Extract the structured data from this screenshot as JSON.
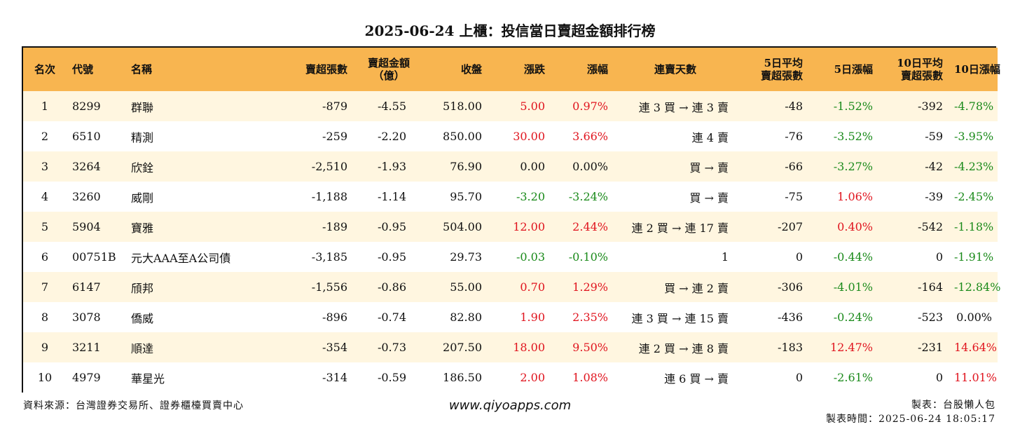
{
  "title": "2025-06-24 上櫃：投信當日賣超金額排行榜",
  "headers": {
    "rank": "名次",
    "code": "代號",
    "name": "名稱",
    "sell_shares": "賣超張數",
    "sell_amount_1": "賣超金額",
    "sell_amount_2": "（億）",
    "close": "收盤",
    "change": "漲跌",
    "change_pct": "漲幅",
    "streak": "連賣天數",
    "avg5_1": "5日平均",
    "avg5_2": "賣超張數",
    "chg5": "5日漲幅",
    "avg10_1": "10日平均",
    "avg10_2": "賣超張數",
    "chg10": "10日漲幅"
  },
  "rows": [
    {
      "rank": "1",
      "code": "8299",
      "name": "群聯",
      "sell_shares": "-879",
      "sell_amount": "-4.55",
      "close": "518.00",
      "change": "5.00",
      "change_pct": "0.97%",
      "streak": "連 3 買 → 連 3 賣",
      "avg5": "-48",
      "chg5": "-1.52%",
      "avg10": "-392",
      "chg10": "-4.78%"
    },
    {
      "rank": "2",
      "code": "6510",
      "name": "精測",
      "sell_shares": "-259",
      "sell_amount": "-2.20",
      "close": "850.00",
      "change": "30.00",
      "change_pct": "3.66%",
      "streak": "連 4 賣",
      "avg5": "-76",
      "chg5": "-3.52%",
      "avg10": "-59",
      "chg10": "-3.95%"
    },
    {
      "rank": "3",
      "code": "3264",
      "name": "欣銓",
      "sell_shares": "-2,510",
      "sell_amount": "-1.93",
      "close": "76.90",
      "change": "0.00",
      "change_pct": "0.00%",
      "streak": "買 → 賣",
      "avg5": "-66",
      "chg5": "-3.27%",
      "avg10": "-42",
      "chg10": "-4.23%"
    },
    {
      "rank": "4",
      "code": "3260",
      "name": "威剛",
      "sell_shares": "-1,188",
      "sell_amount": "-1.14",
      "close": "95.70",
      "change": "-3.20",
      "change_pct": "-3.24%",
      "streak": "買 → 賣",
      "avg5": "-75",
      "chg5": "1.06%",
      "avg10": "-39",
      "chg10": "-2.45%"
    },
    {
      "rank": "5",
      "code": "5904",
      "name": "寶雅",
      "sell_shares": "-189",
      "sell_amount": "-0.95",
      "close": "504.00",
      "change": "12.00",
      "change_pct": "2.44%",
      "streak": "連 2 買 → 連 17 賣",
      "avg5": "-207",
      "chg5": "0.40%",
      "avg10": "-542",
      "chg10": "-1.18%"
    },
    {
      "rank": "6",
      "code": "00751B",
      "name": "元大AAA至A公司債",
      "sell_shares": "-3,185",
      "sell_amount": "-0.95",
      "close": "29.73",
      "change": "-0.03",
      "change_pct": "-0.10%",
      "streak": "1",
      "avg5": "0",
      "chg5": "-0.44%",
      "avg10": "0",
      "chg10": "-1.91%"
    },
    {
      "rank": "7",
      "code": "6147",
      "name": "頎邦",
      "sell_shares": "-1,556",
      "sell_amount": "-0.86",
      "close": "55.00",
      "change": "0.70",
      "change_pct": "1.29%",
      "streak": "買 → 連 2 賣",
      "avg5": "-306",
      "chg5": "-4.01%",
      "avg10": "-164",
      "chg10": "-12.84%"
    },
    {
      "rank": "8",
      "code": "3078",
      "name": "僑威",
      "sell_shares": "-896",
      "sell_amount": "-0.74",
      "close": "82.80",
      "change": "1.90",
      "change_pct": "2.35%",
      "streak": "連 3 買 → 連 15 賣",
      "avg5": "-436",
      "chg5": "-0.24%",
      "avg10": "-523",
      "chg10": "0.00%"
    },
    {
      "rank": "9",
      "code": "3211",
      "name": "順達",
      "sell_shares": "-354",
      "sell_amount": "-0.73",
      "close": "207.50",
      "change": "18.00",
      "change_pct": "9.50%",
      "streak": "連 2 買 → 連 8 賣",
      "avg5": "-183",
      "chg5": "12.47%",
      "avg10": "-231",
      "chg10": "14.64%"
    },
    {
      "rank": "10",
      "code": "4979",
      "name": "華星光",
      "sell_shares": "-314",
      "sell_amount": "-0.59",
      "close": "186.50",
      "change": "2.00",
      "change_pct": "1.08%",
      "streak": "連 6 買 → 賣",
      "avg5": "0",
      "chg5": "-2.61%",
      "avg10": "0",
      "chg10": "11.01%"
    }
  ],
  "footer": {
    "source": "資料來源：台灣證券交易所、證券櫃檯買賣中心",
    "website": "www.qiyoapps.com",
    "maker": "製表：台股懶人包",
    "made_time": "製表時間：2025-06-24 18:05:17"
  },
  "colors": {
    "header_bg": "#f8b550",
    "odd_row_bg": "#fff6e0",
    "up": "#e0141e",
    "down": "#1a8a1a"
  }
}
